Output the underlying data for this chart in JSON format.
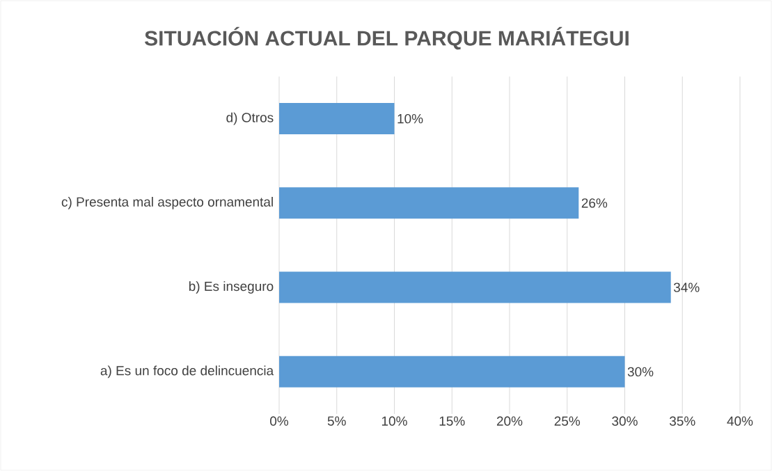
{
  "chart_data": {
    "type": "bar",
    "orientation": "horizontal",
    "title": "SITUACIÓN ACTUAL DEL PARQUE MARIÁTEGUI",
    "categories": [
      "d) Otros",
      "c) Presenta mal aspecto ornamental",
      "b) Es inseguro",
      "a) Es un foco de delincuencia"
    ],
    "values": [
      10,
      26,
      34,
      30
    ],
    "value_labels": [
      "10%",
      "26%",
      "34%",
      "30%"
    ],
    "color": "#5b9bd5",
    "xlim": [
      0,
      40
    ],
    "xticks": [
      {
        "value": 0,
        "label": "0%"
      },
      {
        "value": 5,
        "label": "5%"
      },
      {
        "value": 10,
        "label": "10%"
      },
      {
        "value": 15,
        "label": "15%"
      },
      {
        "value": 20,
        "label": "20%"
      },
      {
        "value": 25,
        "label": "25%"
      },
      {
        "value": 30,
        "label": "30%"
      },
      {
        "value": 35,
        "label": "35%"
      },
      {
        "value": 40,
        "label": "40%"
      }
    ],
    "grid": "x"
  }
}
